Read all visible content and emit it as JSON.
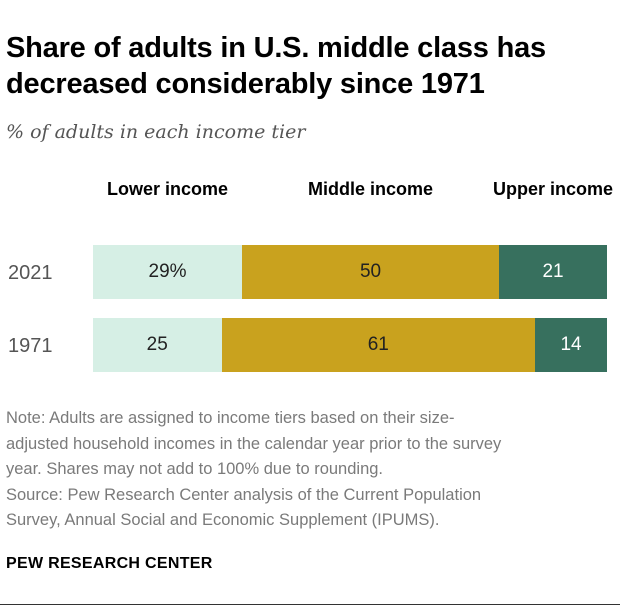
{
  "title": "Share of adults in U.S. middle class has decreased considerably since 1971",
  "subtitle": "% of adults in each income tier",
  "note_lines": [
    "Note: Adults are assigned to income tiers based on their size-",
    "adjusted household incomes in the calendar year prior to the survey",
    "year. Shares may not add to 100% due to rounding.",
    "Source: Pew Research Center analysis of the Current Population",
    "Survey, Annual Social and Economic Supplement (IPUMS)."
  ],
  "brand": "PEW RESEARCH CENTER",
  "colors": {
    "lower": "#d6efe5",
    "middle": "#c9a21e",
    "upper": "#37705e"
  },
  "chart_data": {
    "type": "bar",
    "orientation": "horizontal",
    "stacked": true,
    "title": "Share of adults in U.S. middle class has decreased considerably since 1971",
    "subtitle": "% of adults in each income tier",
    "categories": [
      "2021",
      "1971"
    ],
    "series": [
      {
        "name": "Lower income",
        "values": [
          29,
          25
        ],
        "labels": [
          "29%",
          "25"
        ]
      },
      {
        "name": "Middle income",
        "values": [
          50,
          61
        ],
        "labels": [
          "50",
          "61"
        ]
      },
      {
        "name": "Upper income",
        "values": [
          21,
          14
        ],
        "labels": [
          "21",
          "14"
        ]
      }
    ],
    "legend": "top",
    "grid": false
  }
}
